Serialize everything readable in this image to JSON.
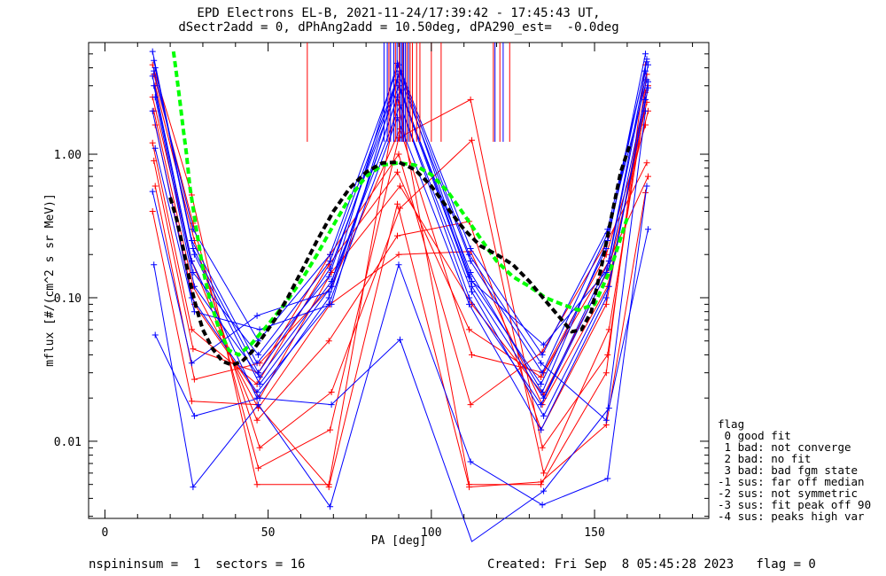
{
  "header": {
    "title_line1": "EPD Electrons EL-B, 2021-11-24/17:39:42 - 17:45:43 UT,",
    "title_line2": "dSectr2add = 0, dPhAng2add = 10.50deg, dPA290_est=  -0.0deg"
  },
  "legend": {
    "title": "flag",
    "entries": [
      " 0 good fit",
      " 1 bad: not converge",
      " 2 bad: no fit",
      " 3 bad: bad fgm state",
      "-1 sus: far off median",
      "-2 sus: not symmetric",
      "-3 sus: fit peak off 90",
      "-4 sus: peaks high var"
    ]
  },
  "footer": {
    "left": "nspininsum =  1  sectors = 16",
    "right": "Created: Fri Sep  8 05:45:28 2023   flag = 0"
  },
  "colors": {
    "blue": "#0000ff",
    "red": "#ff0000",
    "black": "#000000",
    "green": "#00ff00"
  },
  "chart_data": {
    "type": "line",
    "title": "EPD Electrons EL-B, 2021-11-24/17:39:42 - 17:45:43 UT,",
    "subtitle": "dSectr2add = 0, dPhAng2add = 10.50deg, dPA290_est=  -0.0deg",
    "xlabel": "PA [deg]",
    "ylabel": "mflux [#/(cm^2 s sr MeV)]",
    "xlim": [
      -5,
      185
    ],
    "ylim": [
      0.0029,
      6.0
    ],
    "yscale": "log",
    "x_ticks": [
      0,
      50,
      100,
      150
    ],
    "x_tick_labels": [
      "0",
      "50",
      "100",
      "150"
    ],
    "y_ticks": [
      0.01,
      0.1,
      1.0
    ],
    "y_tick_labels": [
      "0.01",
      "0.10",
      "1.00"
    ],
    "pa_columns": [
      15,
      27,
      47,
      69,
      90,
      112,
      134,
      154,
      166
    ],
    "blue_profiles": [
      [
        5.2,
        0.25,
        0.035,
        0.14,
        3.3,
        0.14,
        0.025,
        0.22,
        5.0
      ],
      [
        4.5,
        0.22,
        0.03,
        0.16,
        3.0,
        0.15,
        0.022,
        0.25,
        4.6
      ],
      [
        4.0,
        0.2,
        0.025,
        0.12,
        2.8,
        0.12,
        0.02,
        0.18,
        4.2
      ],
      [
        3.5,
        0.18,
        0.02,
        0.1,
        2.5,
        0.1,
        0.018,
        0.15,
        3.8
      ],
      [
        3.0,
        0.15,
        0.04,
        0.18,
        3.6,
        0.18,
        0.03,
        0.28,
        3.3
      ],
      [
        2.5,
        0.12,
        0.028,
        0.13,
        2.2,
        0.11,
        0.015,
        0.12,
        2.9
      ],
      [
        2.0,
        0.1,
        0.022,
        0.09,
        1.8,
        0.09,
        0.012,
        0.1,
        2.4
      ],
      [
        3.8,
        0.3,
        0.05,
        0.2,
        4.2,
        0.22,
        0.04,
        0.3,
        4.4
      ],
      [
        1.1,
        0.08,
        0.06,
        0.09,
        3.8,
        0.13,
        0.047,
        0.16,
        3.2
      ],
      [
        0.55,
        0.035,
        0.075,
        0.11,
        4.3,
        0.2,
        0.035,
        0.014,
        2.0
      ],
      [
        0.17,
        0.0048,
        0.018,
        0.0035,
        0.17,
        0.0072,
        0.0036,
        0.0055,
        0.6
      ],
      [
        0.055,
        0.015,
        0.02,
        0.018,
        0.051,
        0.002,
        0.0045,
        0.017,
        0.3
      ]
    ],
    "red_profiles": [
      [
        4.2,
        0.52,
        0.005,
        0.005,
        2.5,
        0.005,
        0.005,
        0.03,
        4.2
      ],
      [
        3.6,
        0.33,
        0.0065,
        0.012,
        1.3,
        2.4,
        0.009,
        0.04,
        3.6
      ],
      [
        3.0,
        0.25,
        0.009,
        0.022,
        0.42,
        1.25,
        0.006,
        0.06,
        3.0
      ],
      [
        2.5,
        0.18,
        0.014,
        0.05,
        0.27,
        0.34,
        0.012,
        0.09,
        2.7
      ],
      [
        2.0,
        0.12,
        0.017,
        0.09,
        0.2,
        0.21,
        0.018,
        0.12,
        2.3
      ],
      [
        1.6,
        0.09,
        0.02,
        0.15,
        0.6,
        0.09,
        0.021,
        0.16,
        2.0
      ],
      [
        1.2,
        0.06,
        0.025,
        0.17,
        0.75,
        0.06,
        0.028,
        0.2,
        1.6
      ],
      [
        0.9,
        0.044,
        0.03,
        0.2,
        1.0,
        0.018,
        0.042,
        0.25,
        0.87
      ],
      [
        0.6,
        0.027,
        0.035,
        0.12,
        1.5,
        0.04,
        0.03,
        0.18,
        0.7
      ],
      [
        0.4,
        0.019,
        0.018,
        0.0048,
        0.45,
        0.0048,
        0.0052,
        0.013,
        0.54
      ]
    ],
    "black_dashed_fit": {
      "x": [
        20,
        22,
        24,
        26,
        28,
        30,
        33,
        36,
        39,
        42,
        45,
        48,
        52,
        56,
        60,
        65,
        70,
        75,
        80,
        85,
        90,
        95,
        100,
        105,
        110,
        115,
        120,
        125,
        130,
        135,
        140,
        143,
        146,
        149,
        152,
        155,
        158,
        161
      ],
      "y": [
        0.5,
        0.35,
        0.22,
        0.13,
        0.085,
        0.06,
        0.044,
        0.036,
        0.034,
        0.036,
        0.042,
        0.052,
        0.07,
        0.1,
        0.15,
        0.25,
        0.4,
        0.58,
        0.75,
        0.87,
        0.88,
        0.78,
        0.6,
        0.42,
        0.3,
        0.23,
        0.2,
        0.17,
        0.13,
        0.095,
        0.07,
        0.058,
        0.06,
        0.08,
        0.16,
        0.35,
        0.75,
        1.2
      ]
    },
    "green_dashed_fit": {
      "x": [
        21,
        22,
        23,
        24,
        25,
        26,
        28,
        30,
        32,
        35,
        38,
        41,
        45,
        50,
        55,
        60,
        65,
        70,
        75,
        80,
        85,
        90,
        95,
        100,
        105,
        110,
        115,
        120,
        125,
        130,
        135,
        140,
        145,
        150,
        155,
        160
      ],
      "y": [
        5.2,
        3.5,
        2.3,
        1.5,
        1.0,
        0.6,
        0.3,
        0.16,
        0.1,
        0.06,
        0.043,
        0.04,
        0.048,
        0.065,
        0.09,
        0.13,
        0.2,
        0.32,
        0.5,
        0.7,
        0.84,
        0.87,
        0.84,
        0.72,
        0.55,
        0.38,
        0.26,
        0.18,
        0.14,
        0.12,
        0.1,
        0.09,
        0.082,
        0.09,
        0.16,
        0.36
      ]
    },
    "blue_rug_x": [
      85.5,
      86.5,
      87.5,
      88.5,
      89.5,
      90.5,
      91,
      91.5,
      92,
      93,
      119.5,
      122
    ],
    "red_rug_x": [
      62,
      87,
      89,
      90.2,
      91.3,
      92.5,
      93.5,
      94.2,
      95.5,
      96.5,
      100,
      103,
      119,
      121,
      124
    ],
    "legend_position": "bottom-right, outside plot"
  }
}
